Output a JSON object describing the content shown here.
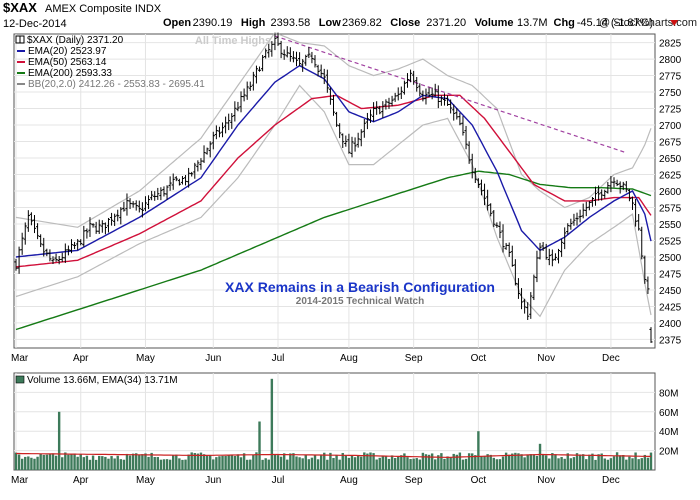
{
  "header": {
    "symbol": "$XAX",
    "name": "AMEX Composite INDX",
    "date": "12-Dec-2014",
    "copyright": "@ StockCharts.com",
    "quote": [
      {
        "label": "Open",
        "value": "2390.19"
      },
      {
        "label": "High",
        "value": "2393.58"
      },
      {
        "label": "Low",
        "value": "2369.82"
      },
      {
        "label": "Close",
        "value": "2371.20"
      },
      {
        "label": "Volume",
        "value": "13.7M"
      },
      {
        "label": "Chg",
        "value": "-45.14 (-1.87%)"
      }
    ]
  },
  "legend": {
    "price": "$XAX (Daily) 2371.20",
    "ema20": "EMA(20) 2523.97",
    "ema50": "EMA(50) 2563.14",
    "ema200": "EMA(200) 2593.33",
    "bb": "BB(20,2.0) 2412.26 - 2553.83 - 2695.41"
  },
  "annotations": {
    "all_time_highs": "All Time Highs",
    "headline": "XAX Remains in a Bearish Configuration",
    "subheadline": "2014-2015 Technical Watch"
  },
  "volume_legend": "Volume 13.66M, EMA(34) 13.71M",
  "colors": {
    "ema20": "#1a1aa8",
    "ema50": "#d0103a",
    "ema200": "#157a15",
    "bb": "#bbbbbb",
    "trendline": "#a040a0",
    "volume_bar": "#3d7a5a",
    "volume_ema": "#cc2222",
    "headline": "#1a35c8",
    "grid": "#e4e4e4"
  },
  "chart_data": [
    {
      "type": "candlestick-ohlc",
      "x_labels": [
        "Mar",
        "Apr",
        "May",
        "Jun",
        "Jul",
        "Aug",
        "Sep",
        "Oct",
        "Nov",
        "Dec"
      ],
      "y_ticks": [
        2375,
        2400,
        2425,
        2450,
        2475,
        2500,
        2525,
        2550,
        2575,
        2600,
        2625,
        2650,
        2675,
        2700,
        2725,
        2750,
        2775,
        2800,
        2825
      ],
      "ylim": [
        2362,
        2838
      ],
      "grid": true,
      "legend_position": "top-left",
      "price_anchors": [
        [
          0,
          2490
        ],
        [
          4,
          2560
        ],
        [
          8,
          2515
        ],
        [
          12,
          2490
        ],
        [
          16,
          2505
        ],
        [
          20,
          2520
        ],
        [
          24,
          2545
        ],
        [
          28,
          2545
        ],
        [
          32,
          2565
        ],
        [
          36,
          2580
        ],
        [
          40,
          2570
        ],
        [
          44,
          2590
        ],
        [
          48,
          2600
        ],
        [
          52,
          2615
        ],
        [
          56,
          2620
        ],
        [
          60,
          2650
        ],
        [
          64,
          2680
        ],
        [
          68,
          2700
        ],
        [
          72,
          2730
        ],
        [
          76,
          2760
        ],
        [
          80,
          2800
        ],
        [
          84,
          2825
        ],
        [
          88,
          2805
        ],
        [
          92,
          2790
        ],
        [
          96,
          2805
        ],
        [
          100,
          2770
        ],
        [
          104,
          2700
        ],
        [
          108,
          2660
        ],
        [
          112,
          2690
        ],
        [
          116,
          2720
        ],
        [
          120,
          2730
        ],
        [
          124,
          2745
        ],
        [
          128,
          2780
        ],
        [
          132,
          2745
        ],
        [
          136,
          2745
        ],
        [
          140,
          2730
        ],
        [
          144,
          2700
        ],
        [
          148,
          2635
        ],
        [
          152,
          2590
        ],
        [
          156,
          2545
        ],
        [
          160,
          2500
        ],
        [
          164,
          2430
        ],
        [
          166,
          2415
        ],
        [
          170,
          2520
        ],
        [
          174,
          2490
        ],
        [
          178,
          2540
        ],
        [
          182,
          2560
        ],
        [
          186,
          2580
        ],
        [
          190,
          2600
        ],
        [
          194,
          2620
        ],
        [
          198,
          2600
        ],
        [
          200,
          2580
        ],
        [
          202,
          2540
        ],
        [
          204,
          2470
        ],
        [
          206,
          2420
        ]
      ],
      "last_bar": {
        "open": 2390.19,
        "high": 2393.58,
        "low": 2369.82,
        "close": 2371.2
      },
      "ema20": [
        [
          0,
          2500
        ],
        [
          20,
          2510
        ],
        [
          40,
          2560
        ],
        [
          60,
          2620
        ],
        [
          72,
          2700
        ],
        [
          84,
          2765
        ],
        [
          92,
          2790
        ],
        [
          100,
          2770
        ],
        [
          108,
          2720
        ],
        [
          116,
          2705
        ],
        [
          124,
          2720
        ],
        [
          132,
          2745
        ],
        [
          140,
          2740
        ],
        [
          148,
          2700
        ],
        [
          156,
          2630
        ],
        [
          164,
          2540
        ],
        [
          170,
          2510
        ],
        [
          178,
          2530
        ],
        [
          186,
          2560
        ],
        [
          194,
          2585
        ],
        [
          200,
          2600
        ],
        [
          204,
          2565
        ],
        [
          206,
          2524
        ]
      ],
      "ema50": [
        [
          0,
          2485
        ],
        [
          20,
          2495
        ],
        [
          40,
          2535
        ],
        [
          60,
          2585
        ],
        [
          72,
          2650
        ],
        [
          84,
          2700
        ],
        [
          96,
          2740
        ],
        [
          104,
          2745
        ],
        [
          112,
          2725
        ],
        [
          124,
          2730
        ],
        [
          136,
          2745
        ],
        [
          144,
          2745
        ],
        [
          152,
          2710
        ],
        [
          160,
          2660
        ],
        [
          168,
          2610
        ],
        [
          178,
          2585
        ],
        [
          186,
          2585
        ],
        [
          194,
          2590
        ],
        [
          202,
          2590
        ],
        [
          206,
          2563
        ]
      ],
      "ema200": [
        [
          0,
          2390
        ],
        [
          20,
          2420
        ],
        [
          40,
          2450
        ],
        [
          60,
          2480
        ],
        [
          80,
          2520
        ],
        [
          100,
          2560
        ],
        [
          120,
          2590
        ],
        [
          140,
          2620
        ],
        [
          150,
          2630
        ],
        [
          160,
          2625
        ],
        [
          170,
          2610
        ],
        [
          180,
          2605
        ],
        [
          190,
          2605
        ],
        [
          200,
          2603
        ],
        [
          206,
          2593
        ]
      ],
      "bb_upper": [
        [
          0,
          2560
        ],
        [
          20,
          2545
        ],
        [
          40,
          2600
        ],
        [
          60,
          2680
        ],
        [
          72,
          2760
        ],
        [
          84,
          2840
        ],
        [
          92,
          2825
        ],
        [
          100,
          2820
        ],
        [
          108,
          2790
        ],
        [
          116,
          2775
        ],
        [
          124,
          2785
        ],
        [
          132,
          2800
        ],
        [
          140,
          2775
        ],
        [
          148,
          2760
        ],
        [
          156,
          2725
        ],
        [
          164,
          2625
        ],
        [
          170,
          2600
        ],
        [
          178,
          2575
        ],
        [
          186,
          2590
        ],
        [
          194,
          2625
        ],
        [
          200,
          2635
        ],
        [
          204,
          2670
        ],
        [
          206,
          2695
        ]
      ],
      "bb_lower": [
        [
          0,
          2440
        ],
        [
          20,
          2470
        ],
        [
          40,
          2520
        ],
        [
          60,
          2560
        ],
        [
          72,
          2620
        ],
        [
          84,
          2700
        ],
        [
          92,
          2760
        ],
        [
          100,
          2720
        ],
        [
          108,
          2640
        ],
        [
          116,
          2640
        ],
        [
          124,
          2670
        ],
        [
          132,
          2700
        ],
        [
          140,
          2710
        ],
        [
          148,
          2640
        ],
        [
          156,
          2530
        ],
        [
          164,
          2440
        ],
        [
          170,
          2410
        ],
        [
          178,
          2480
        ],
        [
          186,
          2520
        ],
        [
          194,
          2545
        ],
        [
          200,
          2565
        ],
        [
          204,
          2460
        ],
        [
          206,
          2412
        ]
      ],
      "trendline": [
        [
          84,
          2835
        ],
        [
          198,
          2658
        ]
      ]
    },
    {
      "type": "bar",
      "x_labels": [
        "Mar",
        "Apr",
        "May",
        "Jun",
        "Jul",
        "Aug",
        "Sep",
        "Oct",
        "Nov",
        "Dec"
      ],
      "y_ticks": [
        20,
        40,
        60,
        80
      ],
      "y_tick_suffix": "M",
      "ylim": [
        0,
        100
      ],
      "baseline": 14,
      "spikes": [
        [
          14,
          60
        ],
        [
          79,
          50
        ],
        [
          83,
          94
        ],
        [
          150,
          40
        ],
        [
          170,
          27
        ],
        [
          190,
          17
        ]
      ],
      "ema34": [
        [
          0,
          17
        ],
        [
          30,
          16
        ],
        [
          60,
          15
        ],
        [
          84,
          16
        ],
        [
          110,
          15
        ],
        [
          140,
          13
        ],
        [
          170,
          16
        ],
        [
          206,
          14
        ]
      ]
    }
  ]
}
